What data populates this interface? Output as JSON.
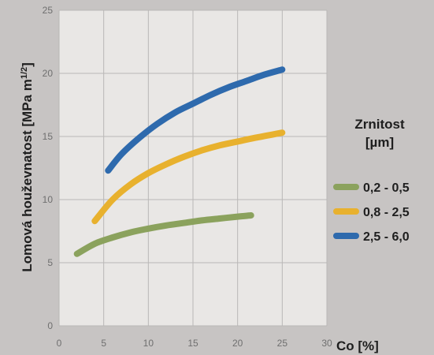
{
  "chart_data": {
    "type": "line",
    "xlabel": "Co [%]",
    "ylabel": "Lomová houževnatost [MPa m",
    "ylabel_sup": "1/2",
    "ylabel_end": "]",
    "xlim": [
      0,
      30
    ],
    "ylim": [
      0,
      25
    ],
    "x_ticks": [
      "0",
      "5",
      "10",
      "15",
      "20",
      "25",
      "30"
    ],
    "y_ticks": [
      "0",
      "5",
      "10",
      "15",
      "20",
      "25"
    ],
    "grid": true,
    "legend_title_line1": "Zrnitost",
    "legend_title_line2": "[µm]",
    "legend_position": "right",
    "series": [
      {
        "name": "0,2 - 0,5",
        "color": "#8ba25d",
        "x": [
          2,
          4,
          6,
          8,
          10,
          12,
          14,
          16,
          18,
          20,
          21.5
        ],
        "y": [
          5.7,
          6.5,
          7.0,
          7.4,
          7.7,
          7.95,
          8.15,
          8.35,
          8.5,
          8.65,
          8.75
        ]
      },
      {
        "name": "0,8 - 2,5",
        "color": "#e8b12e",
        "x": [
          4,
          6,
          8,
          10,
          12,
          14,
          16,
          18,
          20,
          22,
          25
        ],
        "y": [
          8.3,
          10.0,
          11.2,
          12.1,
          12.8,
          13.4,
          13.9,
          14.3,
          14.6,
          14.9,
          15.3
        ]
      },
      {
        "name": "2,5 - 6,0",
        "color": "#2e6aad",
        "x": [
          5.5,
          7,
          9,
          11,
          13,
          15,
          17,
          19,
          21,
          23,
          25
        ],
        "y": [
          12.3,
          13.6,
          14.9,
          16.0,
          16.9,
          17.6,
          18.3,
          18.9,
          19.4,
          19.9,
          20.3
        ]
      }
    ]
  }
}
